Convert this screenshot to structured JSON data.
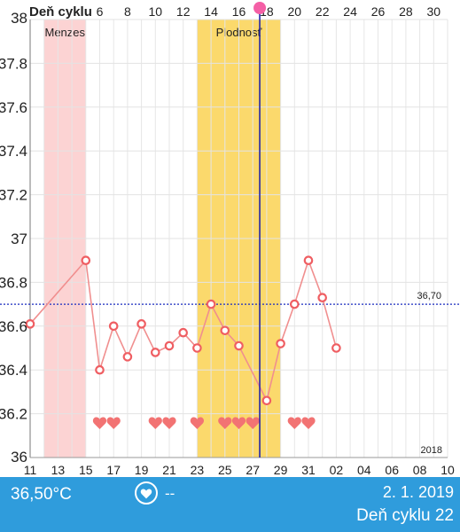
{
  "chart_data": {
    "type": "line",
    "top_axis_title": "Deň cyklu",
    "top_ticks": [
      "6",
      "8",
      "10",
      "12",
      "14",
      "16",
      "18",
      "20",
      "22",
      "24",
      "26",
      "28",
      "30"
    ],
    "bottom_ticks": [
      "11",
      "13",
      "15",
      "17",
      "19",
      "21",
      "23",
      "25",
      "27",
      "29",
      "31",
      "02",
      "04",
      "06",
      "08",
      "10"
    ],
    "y_ticks": [
      "36",
      "36.2",
      "36.4",
      "36.6",
      "36.8",
      "37",
      "37.2",
      "37.4",
      "37.6",
      "37.8",
      "38"
    ],
    "ylim": [
      36.0,
      38.0
    ],
    "xlim": [
      1,
      31
    ],
    "bands": [
      {
        "label": "Menzes",
        "from": 2,
        "to": 5,
        "color": "#fcd3d3",
        "label_color": "#8fb4d8"
      },
      {
        "label": "Plodnosť",
        "from": 13,
        "to": 19,
        "color": "#fbd96c",
        "label_color": "#8fb4d8"
      }
    ],
    "coverline": {
      "value": 36.7,
      "label": "36,70",
      "color": "#1a2bbf"
    },
    "current_day": 17.5,
    "series": [
      {
        "color": "#f08f8f",
        "points": [
          {
            "day": 1,
            "value": 36.61
          },
          {
            "day": 5,
            "value": 36.9
          },
          {
            "day": 6,
            "value": 36.4
          },
          {
            "day": 7,
            "value": 36.6
          },
          {
            "day": 8,
            "value": 36.46
          },
          {
            "day": 9,
            "value": 36.61
          },
          {
            "day": 10,
            "value": 36.48
          },
          {
            "day": 11,
            "value": 36.51
          },
          {
            "day": 12,
            "value": 36.57
          },
          {
            "day": 13,
            "value": 36.5
          },
          {
            "day": 14,
            "value": 36.7
          },
          {
            "day": 15,
            "value": 36.58
          },
          {
            "day": 16,
            "value": 36.51
          },
          {
            "day": 18,
            "value": 36.26
          },
          {
            "day": 19,
            "value": 36.52
          },
          {
            "day": 20,
            "value": 36.7
          },
          {
            "day": 21,
            "value": 36.9
          },
          {
            "day": 22,
            "value": 36.73
          },
          {
            "day": 23,
            "value": 36.5
          }
        ]
      }
    ],
    "heart_days": [
      6,
      7,
      10,
      11,
      13,
      15,
      16,
      17,
      20,
      21
    ],
    "year_label": "2018"
  },
  "bottom_bar": {
    "temperature": "36,50°C",
    "heart_icon": "heart-outline-icon",
    "intercourse_value": "--",
    "date": "2. 1. 2019",
    "cycle_day": "Deň cyklu 22"
  },
  "colors": {
    "bottom_bar": "#2f9cdc",
    "heart": "#f27373",
    "cursor": "#2224a8",
    "cursor_knob": "#f45fa6"
  }
}
